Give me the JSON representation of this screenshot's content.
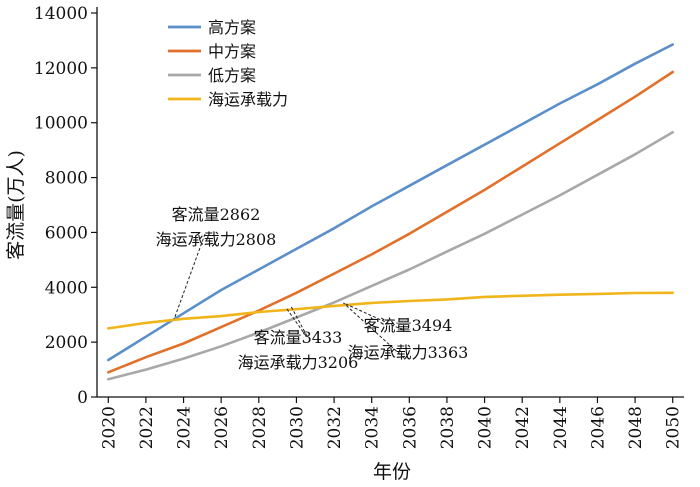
{
  "chart_data": {
    "type": "line",
    "xlabel": "年份",
    "ylabel": "客流量(万人)",
    "xlim": [
      2019.4,
      2050.6
    ],
    "ylim": [
      0,
      14000
    ],
    "x_ticks": [
      2020,
      2022,
      2024,
      2026,
      2028,
      2030,
      2032,
      2034,
      2036,
      2038,
      2040,
      2042,
      2044,
      2046,
      2048,
      2050
    ],
    "y_ticks": [
      0,
      2000,
      4000,
      6000,
      8000,
      10000,
      12000,
      14000
    ],
    "grid": false,
    "legend_position": "top-left",
    "x": [
      2020,
      2022,
      2024,
      2026,
      2028,
      2030,
      2032,
      2034,
      2036,
      2038,
      2040,
      2042,
      2044,
      2046,
      2048,
      2050
    ],
    "series": [
      {
        "name": "高方案",
        "color": "#5b8fc9",
        "values": [
          1350,
          2200,
          3050,
          3900,
          4650,
          5400,
          6150,
          6950,
          7700,
          8450,
          9200,
          9950,
          10700,
          11400,
          12150,
          12850
        ]
      },
      {
        "name": "中方案",
        "color": "#e1702b",
        "values": [
          900,
          1450,
          1950,
          2550,
          3150,
          3800,
          4500,
          5200,
          5950,
          6750,
          7550,
          8400,
          9250,
          10100,
          10950,
          11850
        ]
      },
      {
        "name": "低方案",
        "color": "#a8a8a8",
        "values": [
          650,
          1000,
          1400,
          1850,
          2350,
          2900,
          3450,
          4050,
          4650,
          5300,
          5950,
          6650,
          7350,
          8100,
          8850,
          9650
        ]
      },
      {
        "name": "海运承载力",
        "color": "#f1b51c",
        "values": [
          2500,
          2700,
          2850,
          2950,
          3100,
          3200,
          3320,
          3430,
          3500,
          3560,
          3650,
          3690,
          3730,
          3760,
          3790,
          3800
        ]
      }
    ],
    "annotations": [
      {
        "lines": [
          "客流量2862",
          "海运承载力2808"
        ],
        "point": [
          2023.5,
          2840
        ]
      },
      {
        "lines": [
          "客流量3433",
          "海运承载力3206"
        ],
        "point": [
          2029.7,
          3320
        ]
      },
      {
        "lines": [
          "客流量3494",
          "海运承载力3363"
        ],
        "point": [
          2032.5,
          3430
        ]
      }
    ]
  }
}
